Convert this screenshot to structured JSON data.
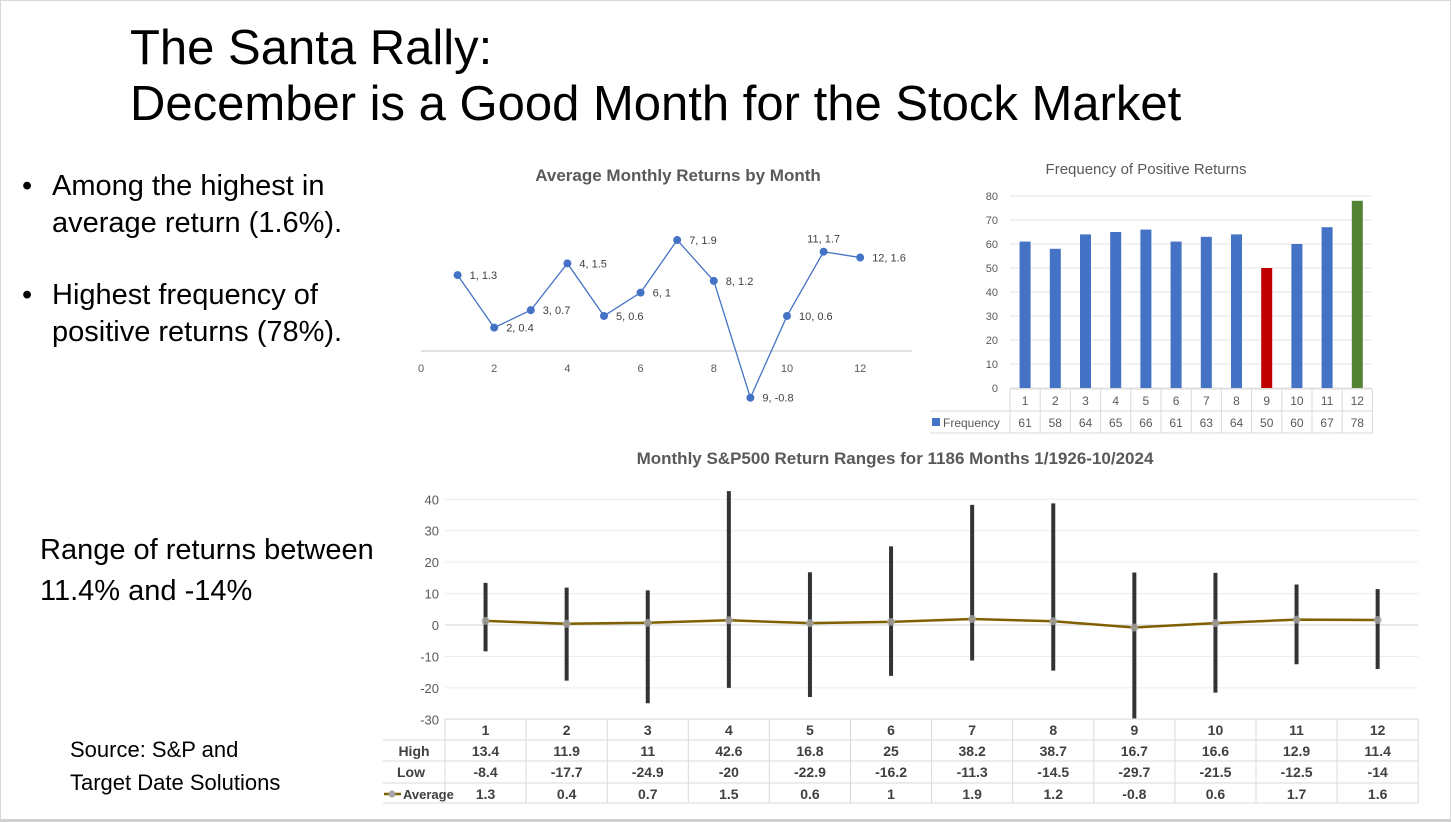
{
  "title": {
    "line1": "The Santa Rally:",
    "line2": "December is a Good Month for the Stock Market"
  },
  "bullets": [
    {
      "symbol": "•",
      "text_line1": "Among the highest in",
      "text_line2": "average return (1.6%)."
    },
    {
      "symbol": "•",
      "text_line1": "Highest frequency of",
      "text_line2": "positive returns (78%)."
    }
  ],
  "range_text": {
    "line1": "Range of returns between",
    "line2": "11.4% and -14%"
  },
  "source": {
    "line1": "Source: S&P and",
    "line2": "Target Date Solutions"
  },
  "chart_data": [
    {
      "type": "line",
      "title": "Average Monthly Returns by Month",
      "x": [
        1,
        2,
        3,
        4,
        5,
        6,
        7,
        8,
        9,
        10,
        11,
        12
      ],
      "y": [
        1.3,
        0.4,
        0.7,
        1.5,
        0.6,
        1,
        1.9,
        1.2,
        -0.8,
        0.6,
        1.7,
        1.6
      ],
      "point_labels": [
        "1, 1.3",
        "2, 0.4",
        "3, 0.7",
        "4, 1.5",
        "5, 0.6",
        "6, 1",
        "7, 1.9",
        "8, 1.2",
        "9, -0.8",
        "10, 0.6",
        "11, 1.7",
        "12, 1.6"
      ],
      "xticks": [
        "0",
        "2",
        "4",
        "6",
        "8",
        "10",
        "12"
      ],
      "xlim": [
        0,
        13.5
      ],
      "color": "#4472c4"
    },
    {
      "type": "bar",
      "title": "Frequency of Positive Returns",
      "categories": [
        "1",
        "2",
        "3",
        "4",
        "5",
        "6",
        "7",
        "8",
        "9",
        "10",
        "11",
        "12"
      ],
      "series": [
        {
          "name": "Frequency",
          "values": [
            61,
            58,
            64,
            65,
            66,
            61,
            63,
            64,
            50,
            60,
            67,
            78
          ]
        }
      ],
      "yticks": [
        "0",
        "10",
        "20",
        "30",
        "40",
        "50",
        "60",
        "70",
        "80"
      ],
      "ylim": [
        0,
        80
      ],
      "colors": {
        "default": "#4472c4",
        "lowest": "#c00000",
        "highest": "#548235"
      },
      "highlight": {
        "lowest_index": 8,
        "highest_index": 11
      }
    },
    {
      "type": "line",
      "title": "Monthly S&P500 Return Ranges for 1186 Months 1/1926-10/2024",
      "categories": [
        "1",
        "2",
        "3",
        "4",
        "5",
        "6",
        "7",
        "8",
        "9",
        "10",
        "11",
        "12"
      ],
      "series": [
        {
          "name": "High",
          "values": [
            13.4,
            11.9,
            11,
            42.6,
            16.8,
            25,
            38.2,
            38.7,
            16.7,
            16.6,
            12.9,
            11.4
          ]
        },
        {
          "name": "Low",
          "values": [
            -8.4,
            -17.7,
            -24.9,
            -20,
            -22.9,
            -16.2,
            -11.3,
            -14.5,
            -29.7,
            -21.5,
            -12.5,
            -14
          ]
        },
        {
          "name": "Average",
          "values": [
            1.3,
            0.4,
            0.7,
            1.5,
            0.6,
            1,
            1.9,
            1.2,
            -0.8,
            0.6,
            1.7,
            1.6
          ]
        }
      ],
      "yticks": [
        "40",
        "30",
        "20",
        "10",
        "0",
        "-10",
        "-20",
        "-30"
      ],
      "ylim": [
        -30,
        40
      ],
      "colors": {
        "range": "#333333",
        "average": "#7f6000",
        "marker": "#a6a6a6"
      }
    }
  ]
}
